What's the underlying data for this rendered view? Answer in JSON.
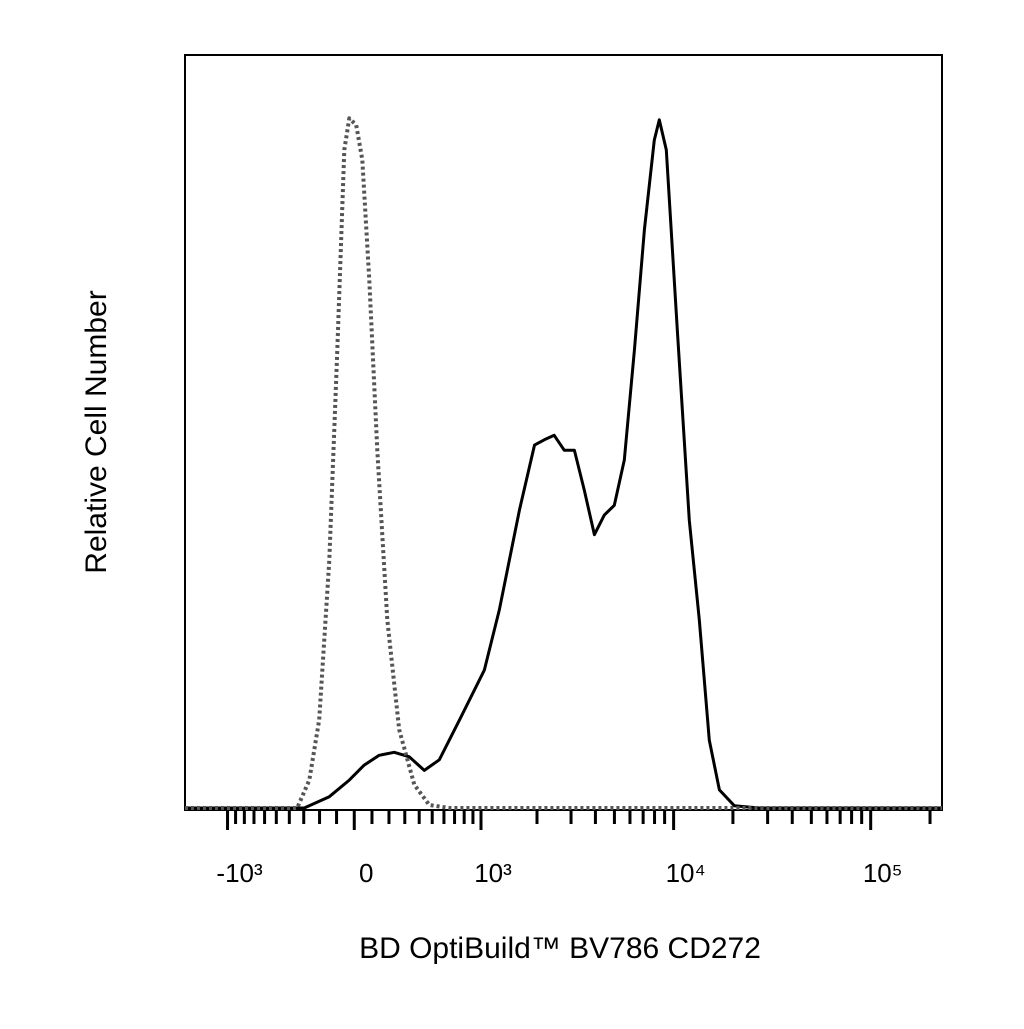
{
  "chart_data": {
    "type": "line",
    "x_label": "BD OptiBuild™ BV786 CD272",
    "y_label": "Relative Cell Number",
    "xscale": "biexponential",
    "xlim": [
      -1700,
      230000
    ],
    "ylim": [
      0,
      100
    ],
    "xticks": [
      {
        "value": -1000,
        "label": "-10³"
      },
      0,
      {
        "value": 1000,
        "label": "10³"
      },
      {
        "value": 10000,
        "label": "10⁴"
      },
      {
        "value": 100000,
        "label": "10⁵"
      }
    ],
    "xminorticks": [
      -900,
      -800,
      -700,
      -600,
      -500,
      -400,
      -300,
      -200,
      -100,
      100,
      200,
      300,
      400,
      500,
      600,
      700,
      800,
      900,
      2000,
      3000,
      4000,
      5000,
      6000,
      7000,
      8000,
      9000,
      20000,
      30000,
      40000,
      50000,
      60000,
      70000,
      80000,
      90000,
      200000
    ],
    "series": [
      {
        "color": "#000000",
        "dash": "solid",
        "x": [
          -1700,
          -297,
          -142,
          -28,
          56,
          142,
          232,
          330,
          438,
          559,
          750,
          1044,
          1262,
          1618,
          1940,
          2184,
          2458,
          2770,
          3120,
          3509,
          3950,
          4440,
          4992,
          5616,
          6317,
          7104,
          7982,
          8462,
          9182,
          10445,
          12019,
          13507,
          15182,
          17069,
          20328,
          27216,
          230000
        ],
        "values": [
          0,
          0,
          1.5,
          3.7,
          5.7,
          7.0,
          7.4,
          6.8,
          5.0,
          6.4,
          11.7,
          18.3,
          26.3,
          39.6,
          48.2,
          48.9,
          49.5,
          47.5,
          47.5,
          42.2,
          36.3,
          38.9,
          40.2,
          46.2,
          60.8,
          76.8,
          88.7,
          91.4,
          87.4,
          63.5,
          38.2,
          25.0,
          9.0,
          2.4,
          0.3,
          0,
          0
        ]
      },
      {
        "color": "#555555",
        "dash": "dotted",
        "x": [
          -1700,
          -344,
          -264,
          -202,
          -142,
          -96,
          -56,
          -28,
          11,
          45,
          85,
          131,
          190,
          264,
          365,
          477,
          651,
          230000
        ],
        "values": [
          0,
          0,
          3.7,
          11.7,
          32.9,
          60.8,
          87.4,
          91.6,
          90.7,
          86.1,
          70.1,
          47.5,
          25.0,
          10.4,
          3.1,
          0.4,
          0,
          0
        ]
      }
    ]
  }
}
